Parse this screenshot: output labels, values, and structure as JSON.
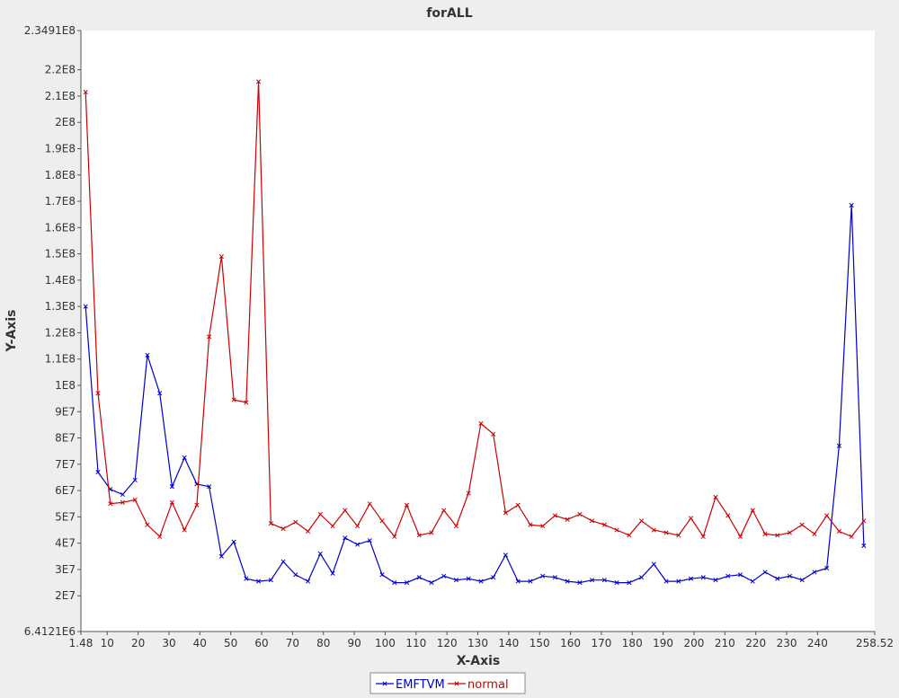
{
  "chart_data": {
    "type": "line",
    "title": "forALL",
    "xlabel": "X-Axis",
    "ylabel": "Y-Axis",
    "xlim": [
      1.48,
      258.52
    ],
    "ylim": [
      6412100,
      234910000
    ],
    "x_ticks": [
      "1.48",
      "10",
      "20",
      "30",
      "40",
      "50",
      "60",
      "70",
      "80",
      "90",
      "100",
      "110",
      "120",
      "130",
      "140",
      "150",
      "160",
      "170",
      "180",
      "190",
      "200",
      "210",
      "220",
      "230",
      "240",
      "258.52"
    ],
    "y_ticks": [
      "6.4121E6",
      "2E7",
      "3E7",
      "4E7",
      "5E7",
      "6E7",
      "7E7",
      "8E7",
      "9E7",
      "1E8",
      "1.1E8",
      "1.2E8",
      "1.3E8",
      "1.4E8",
      "1.5E8",
      "1.6E8",
      "1.7E8",
      "1.8E8",
      "1.9E8",
      "2E8",
      "2.1E8",
      "2.2E8",
      "2.3491E8"
    ],
    "grid": false,
    "legend_position": "bottom-center",
    "x": [
      3,
      7,
      11,
      15,
      19,
      23,
      27,
      31,
      35,
      39,
      43,
      47,
      51,
      55,
      59,
      63,
      67,
      71,
      75,
      79,
      83,
      87,
      91,
      95,
      99,
      103,
      107,
      111,
      115,
      119,
      123,
      127,
      131,
      135,
      139,
      143,
      147,
      151,
      155,
      159,
      163,
      167,
      171,
      175,
      179,
      183,
      187,
      191,
      195,
      199,
      203,
      207,
      211,
      215,
      219,
      223,
      227,
      231,
      235,
      239,
      243,
      247,
      251,
      255
    ],
    "series": [
      {
        "name": "EMFTVM",
        "color": "#0000cc",
        "values": [
          130000000,
          67000000,
          60500000,
          58500000,
          64000000,
          111500000,
          97000000,
          61500000,
          72500000,
          62500000,
          61500000,
          35000000,
          40500000,
          26500000,
          25500000,
          26000000,
          33000000,
          28000000,
          25500000,
          36000000,
          28500000,
          42000000,
          39500000,
          41000000,
          28000000,
          25000000,
          25000000,
          27000000,
          25000000,
          27500000,
          26000000,
          26500000,
          25500000,
          27000000,
          35500000,
          25500000,
          25500000,
          27500000,
          27000000,
          25500000,
          25000000,
          26000000,
          26000000,
          25000000,
          25000000,
          27000000,
          32000000,
          25500000,
          25500000,
          26500000,
          27000000,
          26000000,
          27500000,
          28000000,
          25500000,
          29000000,
          26500000,
          27500000,
          26000000,
          29000000,
          30500000,
          77000000,
          168500000,
          39000000
        ]
      },
      {
        "name": "normal",
        "color": "#cc0000",
        "values": [
          211500000,
          97000000,
          55000000,
          55500000,
          56500000,
          47000000,
          42500000,
          55500000,
          45000000,
          54500000,
          118500000,
          149000000,
          94500000,
          93500000,
          215500000,
          47500000,
          45500000,
          48000000,
          44500000,
          51000000,
          46500000,
          52500000,
          46500000,
          55000000,
          48500000,
          42500000,
          54500000,
          43000000,
          44000000,
          52500000,
          46500000,
          59000000,
          85500000,
          81500000,
          51500000,
          54500000,
          47000000,
          46500000,
          50500000,
          49000000,
          51000000,
          48500000,
          47000000,
          45000000,
          43000000,
          48500000,
          45000000,
          44000000,
          43000000,
          49500000,
          42500000,
          57500000,
          50500000,
          42500000,
          52500000,
          43500000,
          43000000,
          44000000,
          47000000,
          43500000,
          50500000,
          44500000,
          42500000,
          48500000
        ]
      }
    ]
  }
}
